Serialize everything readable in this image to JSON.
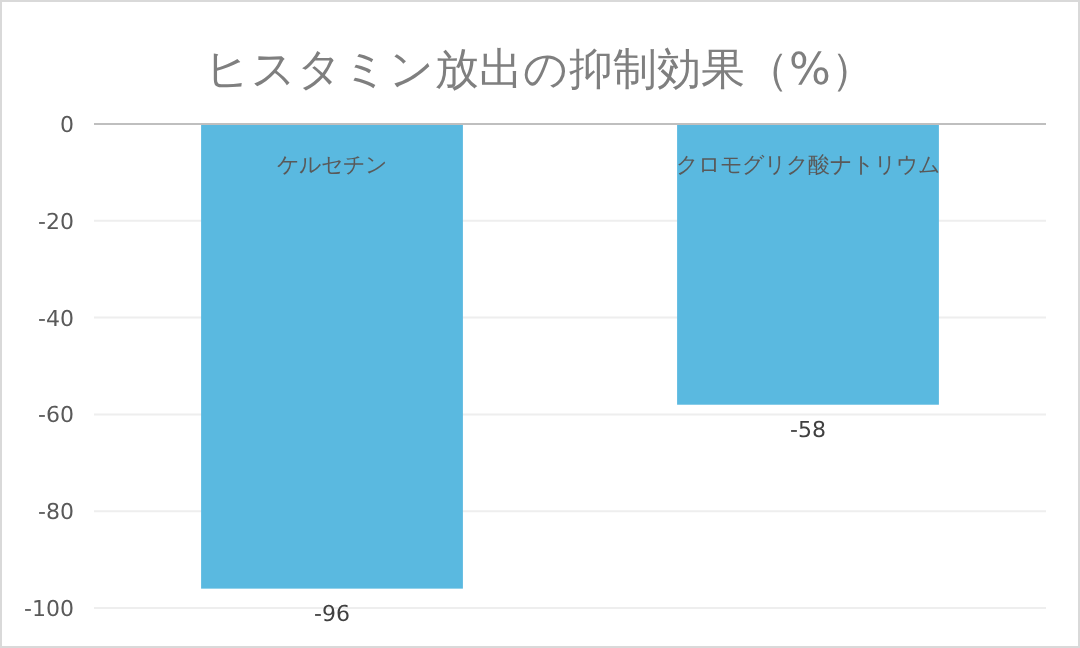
{
  "chart_data": {
    "type": "bar",
    "title": "ヒスタミン放出の抑制効果（%）",
    "categories": [
      "ケルセチン",
      "クロモグリク酸ナトリウム"
    ],
    "values": [
      -96,
      -58
    ],
    "color": "#5ab9e0",
    "ylim": [
      -100,
      0
    ],
    "yticks": [
      0,
      -20,
      -40,
      -60,
      -80,
      -100
    ],
    "grid": "y",
    "data_labels": true
  }
}
